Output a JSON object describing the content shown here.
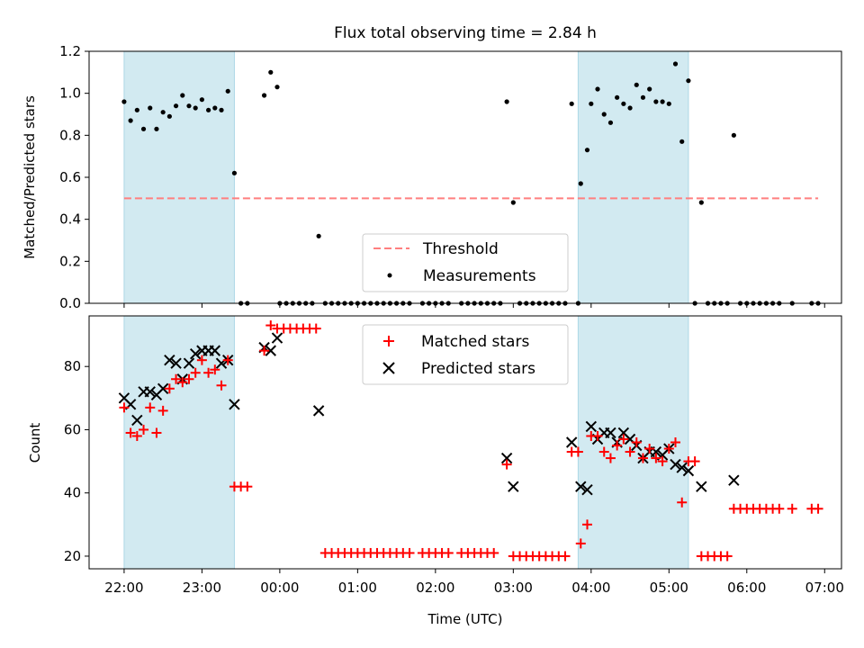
{
  "title": "Flux total observing time = 2.84 h",
  "colors": {
    "band": "#add8e6",
    "threshold": "#ff7f7f",
    "measurement": "#000000",
    "matched": "#ff0000",
    "predicted": "#000000"
  },
  "chart_data": [
    {
      "type": "scatter",
      "panel": "top",
      "ylabel": "Matched/Predicted stars",
      "xlabel": "",
      "ylim": [
        0,
        1.2
      ],
      "yticks": [
        "0.0",
        "0.2",
        "0.4",
        "0.6",
        "0.8",
        "1.0",
        "1.2"
      ],
      "xlim": [
        "21:33",
        "07:13"
      ],
      "shaded_ranges": [
        [
          "22:00",
          "23:25"
        ],
        [
          "03:50",
          "05:15"
        ]
      ],
      "legend": {
        "placement": "lower-center",
        "entries": [
          "Threshold",
          "Measurements"
        ]
      },
      "threshold": {
        "name": "Threshold",
        "value": 0.5,
        "x": [
          "22:00",
          "06:55"
        ]
      },
      "series": [
        {
          "name": "Measurements",
          "points": [
            [
              "22:00",
              0.96
            ],
            [
              "22:05",
              0.87
            ],
            [
              "22:10",
              0.92
            ],
            [
              "22:15",
              0.83
            ],
            [
              "22:20",
              0.93
            ],
            [
              "22:25",
              0.83
            ],
            [
              "22:30",
              0.91
            ],
            [
              "22:35",
              0.89
            ],
            [
              "22:40",
              0.94
            ],
            [
              "22:45",
              0.99
            ],
            [
              "22:50",
              0.94
            ],
            [
              "22:55",
              0.93
            ],
            [
              "23:00",
              0.97
            ],
            [
              "23:05",
              0.92
            ],
            [
              "23:10",
              0.93
            ],
            [
              "23:15",
              0.92
            ],
            [
              "23:20",
              1.01
            ],
            [
              "23:25",
              0.62
            ],
            [
              "23:30",
              0.0
            ],
            [
              "23:35",
              0.0
            ],
            [
              "23:48",
              0.99
            ],
            [
              "23:53",
              1.1
            ],
            [
              "23:58",
              1.03
            ],
            [
              "00:00",
              0.0
            ],
            [
              "00:05",
              0.0
            ],
            [
              "00:10",
              0.0
            ],
            [
              "00:15",
              0.0
            ],
            [
              "00:20",
              0.0
            ],
            [
              "00:25",
              0.0
            ],
            [
              "00:30",
              0.32
            ],
            [
              "00:35",
              0.0
            ],
            [
              "00:40",
              0.0
            ],
            [
              "00:45",
              0.0
            ],
            [
              "00:50",
              0.0
            ],
            [
              "00:55",
              0.0
            ],
            [
              "01:00",
              0.0
            ],
            [
              "01:05",
              0.0
            ],
            [
              "01:10",
              0.0
            ],
            [
              "01:15",
              0.0
            ],
            [
              "01:20",
              0.0
            ],
            [
              "01:25",
              0.0
            ],
            [
              "01:30",
              0.0
            ],
            [
              "01:35",
              0.0
            ],
            [
              "01:40",
              0.0
            ],
            [
              "01:50",
              0.0
            ],
            [
              "01:55",
              0.0
            ],
            [
              "02:00",
              0.0
            ],
            [
              "02:05",
              0.0
            ],
            [
              "02:10",
              0.0
            ],
            [
              "02:20",
              0.0
            ],
            [
              "02:25",
              0.0
            ],
            [
              "02:30",
              0.0
            ],
            [
              "02:35",
              0.0
            ],
            [
              "02:40",
              0.0
            ],
            [
              "02:45",
              0.0
            ],
            [
              "02:50",
              0.0
            ],
            [
              "02:55",
              0.96
            ],
            [
              "03:00",
              0.48
            ],
            [
              "03:05",
              0.0
            ],
            [
              "03:10",
              0.0
            ],
            [
              "03:15",
              0.0
            ],
            [
              "03:20",
              0.0
            ],
            [
              "03:25",
              0.0
            ],
            [
              "03:30",
              0.0
            ],
            [
              "03:35",
              0.0
            ],
            [
              "03:40",
              0.0
            ],
            [
              "03:45",
              0.95
            ],
            [
              "03:50",
              0.0
            ],
            [
              "03:52",
              0.57
            ],
            [
              "03:57",
              0.73
            ],
            [
              "04:00",
              0.95
            ],
            [
              "04:05",
              1.02
            ],
            [
              "04:10",
              0.9
            ],
            [
              "04:15",
              0.86
            ],
            [
              "04:20",
              0.98
            ],
            [
              "04:25",
              0.95
            ],
            [
              "04:30",
              0.93
            ],
            [
              "04:35",
              1.04
            ],
            [
              "04:40",
              0.98
            ],
            [
              "04:45",
              1.02
            ],
            [
              "04:50",
              0.96
            ],
            [
              "04:55",
              0.96
            ],
            [
              "05:00",
              0.95
            ],
            [
              "05:05",
              1.14
            ],
            [
              "05:10",
              0.77
            ],
            [
              "05:15",
              1.06
            ],
            [
              "05:20",
              0.0
            ],
            [
              "05:25",
              0.48
            ],
            [
              "05:30",
              0.0
            ],
            [
              "05:35",
              0.0
            ],
            [
              "05:40",
              0.0
            ],
            [
              "05:45",
              0.0
            ],
            [
              "05:50",
              0.8
            ],
            [
              "05:55",
              0.0
            ],
            [
              "06:00",
              0.0
            ],
            [
              "06:05",
              0.0
            ],
            [
              "06:10",
              0.0
            ],
            [
              "06:15",
              0.0
            ],
            [
              "06:20",
              0.0
            ],
            [
              "06:25",
              0.0
            ],
            [
              "06:35",
              0.0
            ],
            [
              "06:50",
              0.0
            ],
            [
              "06:55",
              0.0
            ]
          ]
        }
      ]
    },
    {
      "type": "scatter",
      "panel": "bottom",
      "ylabel": "Count",
      "xlabel": "Time (UTC)",
      "ylim": [
        16,
        96
      ],
      "yticks": [
        "20",
        "40",
        "60",
        "80"
      ],
      "xticks": [
        "22:00",
        "23:00",
        "00:00",
        "01:00",
        "02:00",
        "03:00",
        "04:00",
        "05:00",
        "06:00",
        "07:00"
      ],
      "xlim": [
        "21:33",
        "07:13"
      ],
      "shaded_ranges": [
        [
          "22:00",
          "23:25"
        ],
        [
          "03:50",
          "05:15"
        ]
      ],
      "legend": {
        "placement": "upper-center",
        "entries": [
          "Matched stars",
          "Predicted stars"
        ]
      },
      "series": [
        {
          "name": "Matched stars",
          "marker": "plus",
          "points": [
            [
              "22:00",
              67
            ],
            [
              "22:05",
              59
            ],
            [
              "22:10",
              58
            ],
            [
              "22:15",
              60
            ],
            [
              "22:20",
              67
            ],
            [
              "22:25",
              59
            ],
            [
              "22:30",
              66
            ],
            [
              "22:35",
              73
            ],
            [
              "22:40",
              76
            ],
            [
              "22:45",
              75
            ],
            [
              "22:50",
              76
            ],
            [
              "22:55",
              78
            ],
            [
              "23:00",
              82
            ],
            [
              "23:05",
              78
            ],
            [
              "23:10",
              79
            ],
            [
              "23:15",
              74
            ],
            [
              "23:20",
              82
            ],
            [
              "23:25",
              42
            ],
            [
              "23:30",
              42
            ],
            [
              "23:35",
              42
            ],
            [
              "23:48",
              85
            ],
            [
              "23:53",
              93
            ],
            [
              "23:58",
              92
            ],
            [
              "00:03",
              92
            ],
            [
              "00:08",
              92
            ],
            [
              "00:13",
              92
            ],
            [
              "00:18",
              92
            ],
            [
              "00:23",
              92
            ],
            [
              "00:28",
              92
            ],
            [
              "00:35",
              21
            ],
            [
              "00:40",
              21
            ],
            [
              "00:45",
              21
            ],
            [
              "00:50",
              21
            ],
            [
              "00:55",
              21
            ],
            [
              "01:00",
              21
            ],
            [
              "01:05",
              21
            ],
            [
              "01:10",
              21
            ],
            [
              "01:15",
              21
            ],
            [
              "01:20",
              21
            ],
            [
              "01:25",
              21
            ],
            [
              "01:30",
              21
            ],
            [
              "01:35",
              21
            ],
            [
              "01:40",
              21
            ],
            [
              "01:50",
              21
            ],
            [
              "01:55",
              21
            ],
            [
              "02:00",
              21
            ],
            [
              "02:05",
              21
            ],
            [
              "02:10",
              21
            ],
            [
              "02:20",
              21
            ],
            [
              "02:25",
              21
            ],
            [
              "02:30",
              21
            ],
            [
              "02:35",
              21
            ],
            [
              "02:40",
              21
            ],
            [
              "02:45",
              21
            ],
            [
              "02:55",
              49
            ],
            [
              "03:00",
              20
            ],
            [
              "03:05",
              20
            ],
            [
              "03:10",
              20
            ],
            [
              "03:15",
              20
            ],
            [
              "03:20",
              20
            ],
            [
              "03:25",
              20
            ],
            [
              "03:30",
              20
            ],
            [
              "03:35",
              20
            ],
            [
              "03:40",
              20
            ],
            [
              "03:45",
              53
            ],
            [
              "03:50",
              53
            ],
            [
              "03:52",
              24
            ],
            [
              "03:57",
              30
            ],
            [
              "04:00",
              58
            ],
            [
              "04:05",
              58
            ],
            [
              "04:10",
              53
            ],
            [
              "04:15",
              51
            ],
            [
              "04:20",
              55
            ],
            [
              "04:25",
              57
            ],
            [
              "04:30",
              53
            ],
            [
              "04:35",
              56
            ],
            [
              "04:40",
              51
            ],
            [
              "04:45",
              54
            ],
            [
              "04:50",
              51
            ],
            [
              "04:55",
              50
            ],
            [
              "05:00",
              54
            ],
            [
              "05:05",
              56
            ],
            [
              "05:10",
              37
            ],
            [
              "05:15",
              50
            ],
            [
              "05:20",
              50
            ],
            [
              "05:25",
              20
            ],
            [
              "05:30",
              20
            ],
            [
              "05:35",
              20
            ],
            [
              "05:40",
              20
            ],
            [
              "05:45",
              20
            ],
            [
              "05:50",
              35
            ],
            [
              "05:55",
              35
            ],
            [
              "06:00",
              35
            ],
            [
              "06:05",
              35
            ],
            [
              "06:10",
              35
            ],
            [
              "06:15",
              35
            ],
            [
              "06:20",
              35
            ],
            [
              "06:25",
              35
            ],
            [
              "06:35",
              35
            ],
            [
              "06:50",
              35
            ],
            [
              "06:55",
              35
            ]
          ]
        },
        {
          "name": "Predicted stars",
          "marker": "x",
          "points": [
            [
              "22:00",
              70
            ],
            [
              "22:05",
              68
            ],
            [
              "22:10",
              63
            ],
            [
              "22:15",
              72
            ],
            [
              "22:20",
              72
            ],
            [
              "22:25",
              71
            ],
            [
              "22:30",
              73
            ],
            [
              "22:35",
              82
            ],
            [
              "22:40",
              81
            ],
            [
              "22:45",
              76
            ],
            [
              "22:50",
              81
            ],
            [
              "22:55",
              84
            ],
            [
              "23:00",
              85
            ],
            [
              "23:05",
              85
            ],
            [
              "23:10",
              85
            ],
            [
              "23:15",
              81
            ],
            [
              "23:20",
              82
            ],
            [
              "23:25",
              68
            ],
            [
              "23:48",
              86
            ],
            [
              "23:53",
              85
            ],
            [
              "23:58",
              89
            ],
            [
              "00:30",
              66
            ],
            [
              "02:55",
              51
            ],
            [
              "03:00",
              42
            ],
            [
              "03:45",
              56
            ],
            [
              "03:52",
              42
            ],
            [
              "03:57",
              41
            ],
            [
              "04:00",
              61
            ],
            [
              "04:05",
              57
            ],
            [
              "04:10",
              59
            ],
            [
              "04:15",
              59
            ],
            [
              "04:20",
              56
            ],
            [
              "04:25",
              59
            ],
            [
              "04:30",
              57
            ],
            [
              "04:35",
              55
            ],
            [
              "04:40",
              51
            ],
            [
              "04:45",
              53
            ],
            [
              "04:50",
              53
            ],
            [
              "04:55",
              52
            ],
            [
              "05:00",
              54
            ],
            [
              "05:05",
              49
            ],
            [
              "05:10",
              48
            ],
            [
              "05:15",
              47
            ],
            [
              "05:25",
              42
            ],
            [
              "05:50",
              44
            ]
          ]
        }
      ]
    }
  ]
}
